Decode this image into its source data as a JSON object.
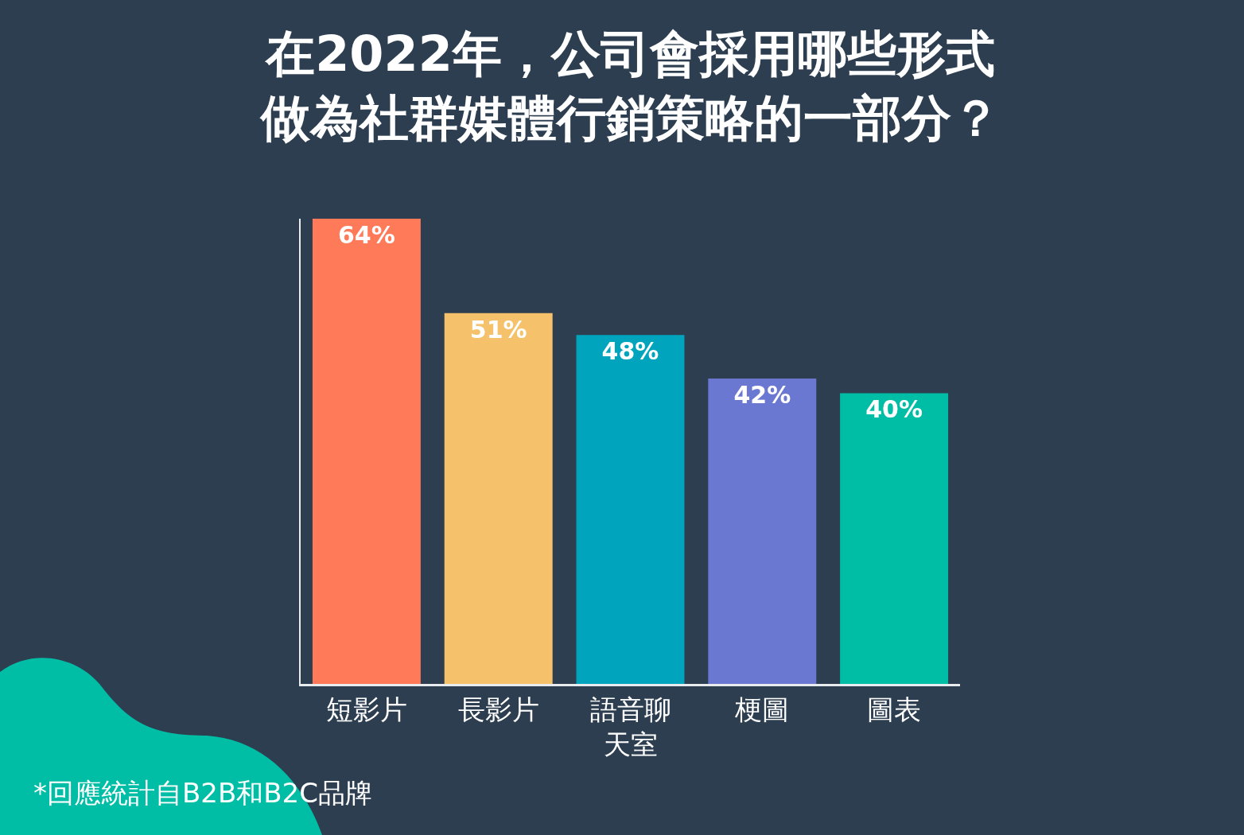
{
  "chart_data": {
    "type": "bar",
    "title": "在2022年，公司會採用哪些形式做為社群媒體行銷策略的一部分？",
    "categories": [
      "短影片",
      "長影片",
      "語音聊天室",
      "梗圖",
      "圖表"
    ],
    "values": [
      64,
      51,
      48,
      42,
      40
    ],
    "colors": [
      "#ff7a59",
      "#f5c26b",
      "#00a4bd",
      "#6a78d1",
      "#00bda5"
    ],
    "value_labels": [
      "64%",
      "51%",
      "48%",
      "42%",
      "40%"
    ],
    "annotations": [
      "*回應統計自B2B和B2C品牌"
    ]
  }
}
